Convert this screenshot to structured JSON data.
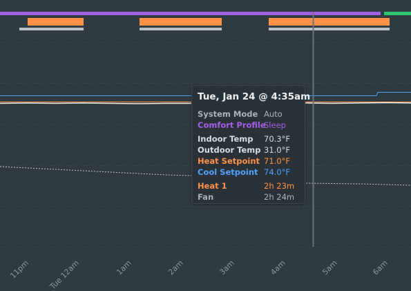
{
  "colors": {
    "background": "#2f3a41",
    "comfort_sleep": "#a35ee8",
    "comfort_home": "#2fc46e",
    "heat_on": "#ff9248",
    "fan_on": "#b7bec4",
    "cool_setpoint_line": "#4ea3ff",
    "heat_setpoint_line": "#ff9248",
    "indoor_line": "#f3efe9",
    "outdoor_line": "#c8cdd0",
    "cursor_line": "#6a747a"
  },
  "tooltip": {
    "title": "Tue, Jan 24 @ 4:35am",
    "system_mode_label": "System Mode",
    "system_mode_value": "Auto",
    "comfort_profile_label": "Comfort Profile",
    "comfort_profile_value": "Sleep",
    "indoor_temp_label": "Indoor Temp",
    "indoor_temp_value": "70.3°F",
    "outdoor_temp_label": "Outdoor Temp",
    "outdoor_temp_value": "31.0°F",
    "heat_setpoint_label": "Heat Setpoint",
    "heat_setpoint_value": "71.0°F",
    "cool_setpoint_label": "Cool Setpoint",
    "cool_setpoint_value": "74.0°F",
    "heat1_label": "Heat 1",
    "heat1_value": "2h 23m",
    "fan_label": "Fan",
    "fan_value": "2h 24m"
  },
  "x_axis": {
    "labels": [
      "11pm",
      "Tue 12am",
      "1am",
      "2am",
      "3am",
      "4am",
      "5am",
      "6am"
    ]
  }
}
